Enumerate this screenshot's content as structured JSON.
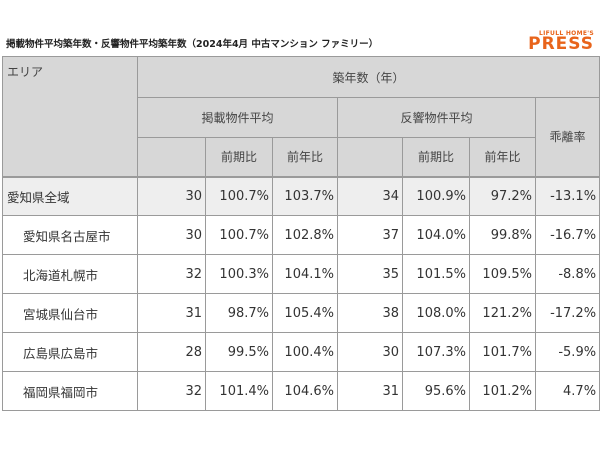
{
  "header": {
    "title": "掲載物件平均築年数・反響物件平均築年数（2024年4月 中古マンション ファミリー）",
    "logo_top": "LIFULL HOME'S",
    "logo_main": "PRESS"
  },
  "table": {
    "area_header": "エリア",
    "group_header": "築年数（年）",
    "listed_header": "掲載物件平均",
    "response_header": "反響物件平均",
    "gap_header": "乖離率",
    "qoq_header": "前期比",
    "yoy_header": "前年比",
    "rows": [
      {
        "area": "愛知県全域",
        "listed": "30",
        "listed_qoq": "100.7%",
        "listed_yoy": "103.7%",
        "resp": "34",
        "resp_qoq": "100.9%",
        "resp_yoy": "97.2%",
        "gap": "-13.1%"
      },
      {
        "area": "愛知県名古屋市",
        "listed": "30",
        "listed_qoq": "100.7%",
        "listed_yoy": "102.8%",
        "resp": "37",
        "resp_qoq": "104.0%",
        "resp_yoy": "99.8%",
        "gap": "-16.7%"
      },
      {
        "area": "北海道札幌市",
        "listed": "32",
        "listed_qoq": "100.3%",
        "listed_yoy": "104.1%",
        "resp": "35",
        "resp_qoq": "101.5%",
        "resp_yoy": "109.5%",
        "gap": "-8.8%"
      },
      {
        "area": "宮城県仙台市",
        "listed": "31",
        "listed_qoq": "98.7%",
        "listed_yoy": "105.4%",
        "resp": "38",
        "resp_qoq": "108.0%",
        "resp_yoy": "121.2%",
        "gap": "-17.2%"
      },
      {
        "area": "広島県広島市",
        "listed": "28",
        "listed_qoq": "99.5%",
        "listed_yoy": "100.4%",
        "resp": "30",
        "resp_qoq": "107.3%",
        "resp_yoy": "101.7%",
        "gap": "-5.9%"
      },
      {
        "area": "福岡県福岡市",
        "listed": "32",
        "listed_qoq": "101.4%",
        "listed_yoy": "104.6%",
        "resp": "31",
        "resp_qoq": "95.6%",
        "resp_yoy": "101.2%",
        "gap": "4.7%"
      }
    ]
  }
}
